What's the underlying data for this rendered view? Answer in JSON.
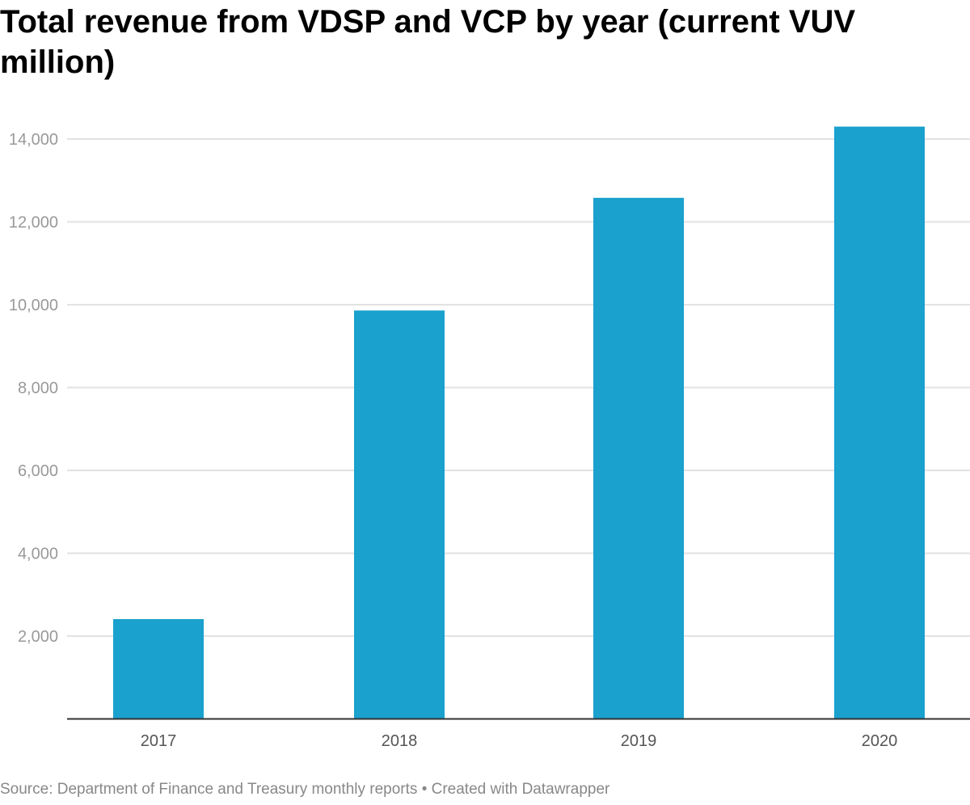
{
  "chart_data": {
    "type": "bar",
    "title": "Total revenue from VDSP and VCP by year (current VUV million)",
    "xlabel": "",
    "ylabel": "",
    "categories": [
      "2017",
      "2018",
      "2019",
      "2020"
    ],
    "values": [
      2410,
      9860,
      12580,
      14300
    ],
    "ylim": [
      0,
      14300
    ],
    "yticks": [
      2000,
      4000,
      6000,
      8000,
      10000,
      12000,
      14000
    ],
    "ytick_labels": [
      "2,000",
      "4,000",
      "6,000",
      "8,000",
      "10,000",
      "12,000",
      "14,000"
    ],
    "grid": true,
    "bar_color": "#1aa1cd"
  },
  "footer": "Source: Department of Finance and Treasury monthly reports • Created with Datawrapper"
}
